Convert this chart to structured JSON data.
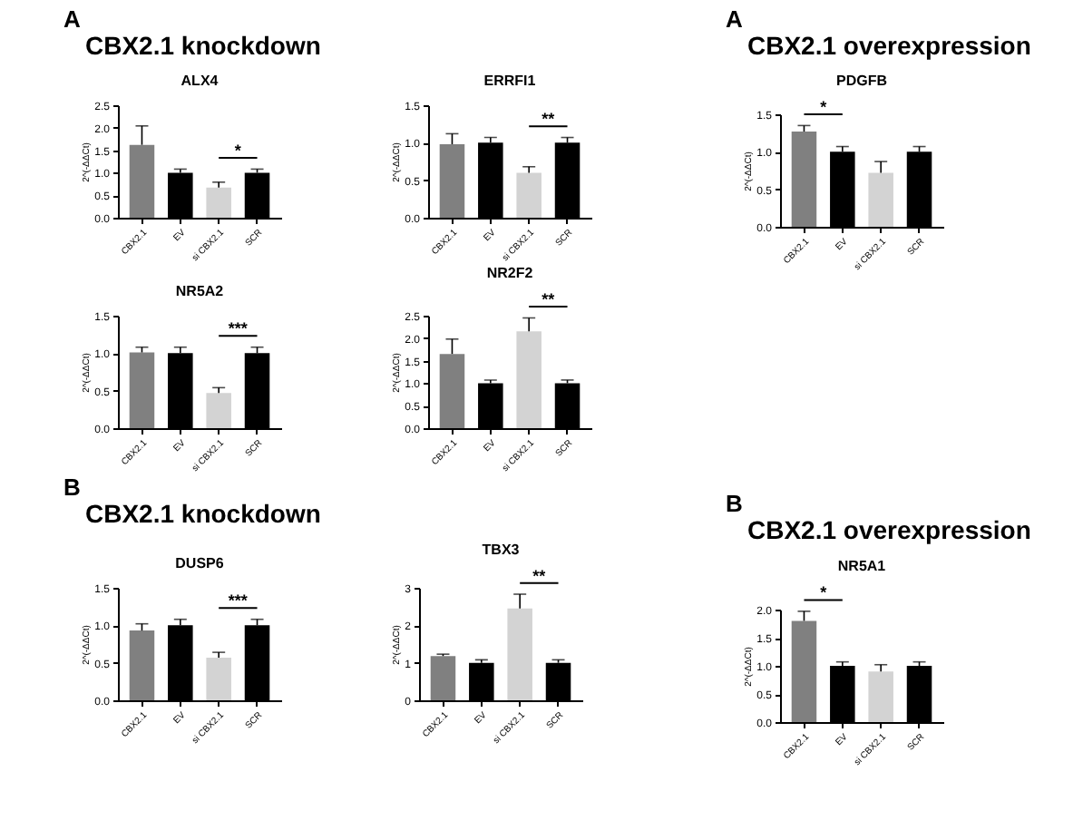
{
  "chart_data": [
    {
      "type": "bar",
      "title": "ALX4",
      "ylabel": "2^(-ΔΔCt)",
      "annotations": [
        "A",
        "CBX2.1 knockdown",
        "*"
      ],
      "categories": [
        "CBX2.1",
        "EV",
        "si CBX2.1",
        "SCR"
      ],
      "values": [
        1.62,
        1.0,
        0.67,
        1.0
      ],
      "errors": [
        0.42,
        0.08,
        0.12,
        0.08
      ],
      "colors": [
        "#808080",
        "#000000",
        "#d3d3d3",
        "#000000"
      ],
      "ylim": [
        0,
        2.5
      ],
      "yticks": [
        {
          "value": 0,
          "label": "0.0"
        },
        {
          "value": 0.5,
          "label": "0.5"
        },
        {
          "value": 1,
          "label": "1.0"
        },
        {
          "value": 1.5,
          "label": "1.5"
        },
        {
          "value": 2,
          "label": "2.0"
        },
        {
          "value": 2.5,
          "label": "2.5"
        }
      ],
      "grid": false,
      "legend": false
    },
    {
      "type": "bar",
      "title": "ERRFI1",
      "ylabel": "2^(-ΔΔCt)",
      "annotations": [
        "**"
      ],
      "categories": [
        "CBX2.1",
        "EV",
        "si CBX2.1",
        "SCR"
      ],
      "values": [
        0.98,
        1.0,
        0.6,
        1.0
      ],
      "errors": [
        0.14,
        0.07,
        0.08,
        0.07
      ],
      "colors": [
        "#808080",
        "#000000",
        "#d3d3d3",
        "#000000"
      ],
      "ylim": [
        0,
        1.5
      ],
      "yticks": [
        {
          "value": 0,
          "label": "0.0"
        },
        {
          "value": 0.5,
          "label": "0.5"
        },
        {
          "value": 1,
          "label": "1.0"
        },
        {
          "value": 1.5,
          "label": "1.5"
        }
      ],
      "grid": false,
      "legend": false
    },
    {
      "type": "bar",
      "title": "NR5A2",
      "ylabel": "2^(-ΔΔCt)",
      "annotations": [
        "***"
      ],
      "categories": [
        "CBX2.1",
        "EV",
        "si CBX2.1",
        "SCR"
      ],
      "values": [
        1.01,
        1.0,
        0.47,
        1.0
      ],
      "errors": [
        0.07,
        0.08,
        0.07,
        0.08
      ],
      "colors": [
        "#808080",
        "#000000",
        "#d3d3d3",
        "#000000"
      ],
      "ylim": [
        0,
        1.5
      ],
      "yticks": [
        {
          "value": 0,
          "label": "0.0"
        },
        {
          "value": 0.5,
          "label": "0.5"
        },
        {
          "value": 1,
          "label": "1.0"
        },
        {
          "value": 1.5,
          "label": "1.5"
        }
      ],
      "grid": false,
      "legend": false
    },
    {
      "type": "bar",
      "title": "NR2F2",
      "ylabel": "2^(-ΔΔCt)",
      "annotations": [
        "**"
      ],
      "categories": [
        "CBX2.1",
        "EV",
        "si CBX2.1",
        "SCR"
      ],
      "values": [
        1.65,
        1.0,
        2.15,
        1.0
      ],
      "errors": [
        0.33,
        0.07,
        0.3,
        0.07
      ],
      "colors": [
        "#808080",
        "#000000",
        "#d3d3d3",
        "#000000"
      ],
      "ylim": [
        0,
        2.5
      ],
      "yticks": [
        {
          "value": 0,
          "label": "0.0"
        },
        {
          "value": 0.5,
          "label": "0.5"
        },
        {
          "value": 1,
          "label": "1.0"
        },
        {
          "value": 1.5,
          "label": "1.5"
        },
        {
          "value": 2,
          "label": "2.0"
        },
        {
          "value": 2.5,
          "label": "2.5"
        }
      ],
      "grid": false,
      "legend": false
    },
    {
      "type": "bar",
      "title": "PDGFB",
      "ylabel": "2^(-ΔΔCt)",
      "annotations": [
        "A",
        "CBX2.1 overexpression",
        "*"
      ],
      "categories": [
        "CBX2.1",
        "EV",
        "si CBX2.1",
        "SCR"
      ],
      "values": [
        1.27,
        1.0,
        0.72,
        1.0
      ],
      "errors": [
        0.08,
        0.07,
        0.15,
        0.07
      ],
      "colors": [
        "#808080",
        "#000000",
        "#d3d3d3",
        "#000000"
      ],
      "ylim": [
        0,
        1.5
      ],
      "yticks": [
        {
          "value": 0,
          "label": "0.0"
        },
        {
          "value": 0.5,
          "label": "0.5"
        },
        {
          "value": 1,
          "label": "1.0"
        },
        {
          "value": 1.5,
          "label": "1.5"
        }
      ],
      "grid": false,
      "legend": false
    },
    {
      "type": "bar",
      "title": "DUSP6",
      "ylabel": "2^(-ΔΔCt)",
      "annotations": [
        "B",
        "CBX2.1 knockdown",
        "***"
      ],
      "categories": [
        "CBX2.1",
        "EV",
        "si CBX2.1",
        "SCR"
      ],
      "values": [
        0.93,
        1.0,
        0.57,
        1.0
      ],
      "errors": [
        0.09,
        0.08,
        0.07,
        0.08
      ],
      "colors": [
        "#808080",
        "#000000",
        "#d3d3d3",
        "#000000"
      ],
      "ylim": [
        0,
        1.5
      ],
      "yticks": [
        {
          "value": 0,
          "label": "0.0"
        },
        {
          "value": 0.5,
          "label": "0.5"
        },
        {
          "value": 1,
          "label": "1.0"
        },
        {
          "value": 1.5,
          "label": "1.5"
        }
      ],
      "grid": false,
      "legend": false
    },
    {
      "type": "bar",
      "title": "TBX3",
      "ylabel": "2^(-ΔΔCt)",
      "annotations": [
        "**"
      ],
      "categories": [
        "CBX2.1",
        "EV",
        "si CBX2.1",
        "SCR"
      ],
      "values": [
        1.18,
        1.0,
        2.45,
        1.0
      ],
      "errors": [
        0.05,
        0.08,
        0.38,
        0.08
      ],
      "colors": [
        "#808080",
        "#000000",
        "#d3d3d3",
        "#000000"
      ],
      "ylim": [
        0,
        3
      ],
      "yticks": [
        0,
        1,
        2,
        3
      ],
      "grid": false,
      "legend": false
    },
    {
      "type": "bar",
      "title": "NR5A1",
      "ylabel": "2^(-ΔΔCt)",
      "annotations": [
        "B",
        "CBX2.1 overexpression",
        "*"
      ],
      "categories": [
        "CBX2.1",
        "EV",
        "si CBX2.1",
        "SCR"
      ],
      "values": [
        1.8,
        1.0,
        0.9,
        1.0
      ],
      "errors": [
        0.17,
        0.07,
        0.12,
        0.07
      ],
      "colors": [
        "#808080",
        "#000000",
        "#d3d3d3",
        "#000000"
      ],
      "ylim": [
        0,
        2.0
      ],
      "yticks": [
        {
          "value": 0,
          "label": "0.0"
        },
        {
          "value": 0.5,
          "label": "0.5"
        },
        {
          "value": 1,
          "label": "1.0"
        },
        {
          "value": 1.5,
          "label": "1.5"
        },
        {
          "value": 2,
          "label": "2.0"
        }
      ],
      "grid": false,
      "legend": false
    }
  ]
}
